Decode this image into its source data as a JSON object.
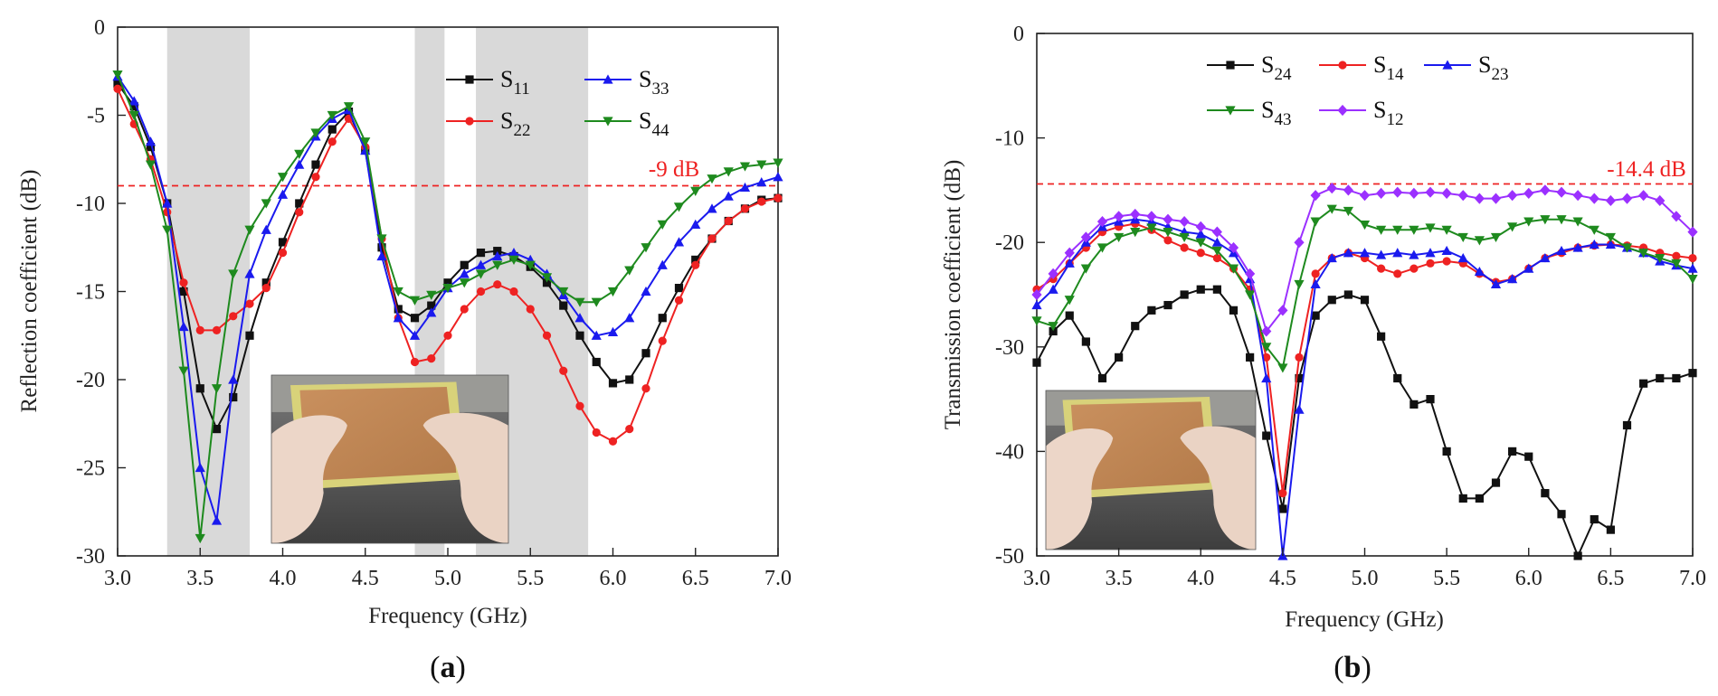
{
  "colors": {
    "black": "#111111",
    "red": "#ee2222",
    "blue": "#1a1aee",
    "green": "#1e8a1e",
    "purple": "#9b30ff",
    "ref_line": "#ee2222",
    "shade": "#d9d9d9"
  },
  "photo": {
    "icon": "photo-icon"
  },
  "chart_data": [
    {
      "type": "line",
      "panel": "a",
      "caption": "a",
      "xlabel": "Frequency (GHz)",
      "ylabel": "Reflection coefficient (dB)",
      "xlim": [
        3.0,
        7.0
      ],
      "ylim": [
        -30,
        0
      ],
      "xticks": [
        "3.0",
        "3.5",
        "4.0",
        "4.5",
        "5.0",
        "5.5",
        "6.0",
        "6.5",
        "7.0"
      ],
      "yticks": [
        "0",
        "-5",
        "-10",
        "-15",
        "-20",
        "-25",
        "-30"
      ],
      "shaded_bands": [
        [
          3.3,
          3.8
        ],
        [
          4.8,
          4.98
        ],
        [
          5.17,
          5.85
        ]
      ],
      "reference": {
        "value": -9,
        "label": "-9 dB"
      },
      "legend_position": "top-right",
      "series": [
        {
          "base": "S",
          "sub": "11",
          "color": "black",
          "marker": "square",
          "x": [
            3.0,
            3.1,
            3.2,
            3.3,
            3.4,
            3.5,
            3.6,
            3.7,
            3.8,
            3.9,
            4.0,
            4.1,
            4.2,
            4.3,
            4.4,
            4.5,
            4.6,
            4.7,
            4.8,
            4.9,
            5.0,
            5.1,
            5.2,
            5.3,
            5.4,
            5.5,
            5.6,
            5.7,
            5.8,
            5.9,
            6.0,
            6.1,
            6.2,
            6.3,
            6.4,
            6.5,
            6.6,
            6.7,
            6.8,
            6.9,
            7.0
          ],
          "y": [
            -3.2,
            -4.5,
            -6.8,
            -10.0,
            -15.0,
            -20.5,
            -22.8,
            -21.0,
            -17.5,
            -14.5,
            -12.2,
            -10.0,
            -7.8,
            -5.8,
            -4.8,
            -7.0,
            -12.5,
            -16.0,
            -16.5,
            -15.8,
            -14.5,
            -13.5,
            -12.8,
            -12.7,
            -13.0,
            -13.6,
            -14.5,
            -15.8,
            -17.5,
            -19.0,
            -20.2,
            -20.0,
            -18.5,
            -16.5,
            -14.8,
            -13.2,
            -12.0,
            -11.0,
            -10.3,
            -9.8,
            -9.7
          ]
        },
        {
          "base": "S",
          "sub": "22",
          "color": "red",
          "marker": "circle",
          "x": [
            3.0,
            3.1,
            3.2,
            3.3,
            3.4,
            3.5,
            3.6,
            3.7,
            3.8,
            3.9,
            4.0,
            4.1,
            4.2,
            4.3,
            4.4,
            4.5,
            4.6,
            4.7,
            4.8,
            4.9,
            5.0,
            5.1,
            5.2,
            5.3,
            5.4,
            5.5,
            5.6,
            5.7,
            5.8,
            5.9,
            6.0,
            6.1,
            6.2,
            6.3,
            6.4,
            6.5,
            6.6,
            6.7,
            6.8,
            6.9,
            7.0
          ],
          "y": [
            -3.5,
            -5.5,
            -7.5,
            -10.5,
            -14.5,
            -17.2,
            -17.2,
            -16.4,
            -15.7,
            -14.8,
            -12.8,
            -10.5,
            -8.5,
            -6.5,
            -5.2,
            -6.8,
            -12.0,
            -16.5,
            -19.0,
            -18.8,
            -17.5,
            -16.0,
            -15.0,
            -14.6,
            -15.0,
            -16.0,
            -17.5,
            -19.5,
            -21.5,
            -23.0,
            -23.5,
            -22.8,
            -20.5,
            -17.8,
            -15.5,
            -13.5,
            -12.0,
            -11.0,
            -10.3,
            -9.9,
            -9.7
          ]
        },
        {
          "base": "S",
          "sub": "33",
          "color": "blue",
          "marker": "triangle-up",
          "x": [
            3.0,
            3.1,
            3.2,
            3.3,
            3.4,
            3.5,
            3.6,
            3.7,
            3.8,
            3.9,
            4.0,
            4.1,
            4.2,
            4.3,
            4.4,
            4.5,
            4.6,
            4.7,
            4.8,
            4.9,
            5.0,
            5.1,
            5.2,
            5.3,
            5.4,
            5.5,
            5.6,
            5.7,
            5.8,
            5.9,
            6.0,
            6.1,
            6.2,
            6.3,
            6.4,
            6.5,
            6.6,
            6.7,
            6.8,
            6.9,
            7.0
          ],
          "y": [
            -2.8,
            -4.2,
            -6.5,
            -10.0,
            -17.0,
            -25.0,
            -28.0,
            -20.0,
            -14.0,
            -11.5,
            -9.5,
            -7.8,
            -6.2,
            -5.2,
            -4.7,
            -7.0,
            -13.0,
            -16.5,
            -17.5,
            -16.2,
            -14.8,
            -14.0,
            -13.5,
            -13.0,
            -12.8,
            -13.2,
            -14.0,
            -15.2,
            -16.5,
            -17.5,
            -17.3,
            -16.5,
            -15.0,
            -13.5,
            -12.2,
            -11.2,
            -10.3,
            -9.6,
            -9.1,
            -8.8,
            -8.5
          ]
        },
        {
          "base": "S",
          "sub": "44",
          "color": "green",
          "marker": "triangle-down",
          "x": [
            3.0,
            3.1,
            3.2,
            3.3,
            3.4,
            3.5,
            3.6,
            3.7,
            3.8,
            3.9,
            4.0,
            4.1,
            4.2,
            4.3,
            4.4,
            4.5,
            4.6,
            4.7,
            4.8,
            4.9,
            5.0,
            5.1,
            5.2,
            5.3,
            5.4,
            5.5,
            5.6,
            5.7,
            5.8,
            5.9,
            6.0,
            6.1,
            6.2,
            6.3,
            6.4,
            6.5,
            6.6,
            6.7,
            6.8,
            6.9,
            7.0
          ],
          "y": [
            -2.7,
            -5.0,
            -7.8,
            -11.5,
            -19.5,
            -29.0,
            -20.5,
            -14.0,
            -11.5,
            -10.0,
            -8.5,
            -7.2,
            -6.0,
            -5.0,
            -4.5,
            -6.5,
            -12.0,
            -15.0,
            -15.5,
            -15.2,
            -14.8,
            -14.5,
            -14.0,
            -13.5,
            -13.2,
            -13.5,
            -14.2,
            -15.0,
            -15.6,
            -15.6,
            -15.0,
            -13.8,
            -12.5,
            -11.2,
            -10.2,
            -9.3,
            -8.6,
            -8.2,
            -7.9,
            -7.8,
            -7.7
          ]
        }
      ]
    },
    {
      "type": "line",
      "panel": "b",
      "caption": "b",
      "xlabel": "Frequency (GHz)",
      "ylabel": "Transmission coefficient (dB)",
      "xlim": [
        3.0,
        7.0
      ],
      "ylim": [
        -50,
        0
      ],
      "xticks": [
        "3.0",
        "3.5",
        "4.0",
        "4.5",
        "5.0",
        "5.5",
        "6.0",
        "6.5",
        "7.0"
      ],
      "yticks": [
        "0",
        "-10",
        "-20",
        "-30",
        "-40",
        "-50"
      ],
      "reference": {
        "value": -14.4,
        "label": "-14.4 dB"
      },
      "legend_position": "top-center",
      "series": [
        {
          "base": "S",
          "sub": "24",
          "color": "black",
          "marker": "square",
          "x": [
            3.0,
            3.1,
            3.2,
            3.3,
            3.4,
            3.5,
            3.6,
            3.7,
            3.8,
            3.9,
            4.0,
            4.1,
            4.2,
            4.3,
            4.4,
            4.5,
            4.6,
            4.7,
            4.8,
            4.9,
            5.0,
            5.1,
            5.2,
            5.3,
            5.4,
            5.5,
            5.6,
            5.7,
            5.8,
            5.9,
            6.0,
            6.1,
            6.2,
            6.3,
            6.4,
            6.5,
            6.6,
            6.7,
            6.8,
            6.9,
            7.0
          ],
          "y": [
            -31.5,
            -28.5,
            -27.0,
            -29.5,
            -33.0,
            -31.0,
            -28.0,
            -26.5,
            -26.0,
            -25.0,
            -24.5,
            -24.5,
            -26.5,
            -31.0,
            -38.5,
            -45.5,
            -33.0,
            -27.0,
            -25.5,
            -25.0,
            -25.5,
            -29.0,
            -33.0,
            -35.5,
            -35.0,
            -40.0,
            -44.5,
            -44.5,
            -43.0,
            -40.0,
            -40.5,
            -44.0,
            -46.0,
            -50.0,
            -46.5,
            -47.5,
            -37.5,
            -33.5,
            -33.0,
            -33.0,
            -32.5
          ]
        },
        {
          "base": "S",
          "sub": "14",
          "color": "red",
          "marker": "circle",
          "x": [
            3.0,
            3.1,
            3.2,
            3.3,
            3.4,
            3.5,
            3.6,
            3.7,
            3.8,
            3.9,
            4.0,
            4.1,
            4.2,
            4.3,
            4.4,
            4.5,
            4.6,
            4.7,
            4.8,
            4.9,
            5.0,
            5.1,
            5.2,
            5.3,
            5.4,
            5.5,
            5.6,
            5.7,
            5.8,
            5.9,
            6.0,
            6.1,
            6.2,
            6.3,
            6.4,
            6.5,
            6.6,
            6.7,
            6.8,
            6.9,
            7.0
          ],
          "y": [
            -24.5,
            -23.5,
            -22.0,
            -20.5,
            -19.0,
            -18.5,
            -18.2,
            -18.8,
            -19.8,
            -20.5,
            -21.0,
            -21.5,
            -22.5,
            -24.5,
            -31.0,
            -44.0,
            -31.0,
            -23.0,
            -21.5,
            -21.0,
            -21.5,
            -22.5,
            -23.0,
            -22.5,
            -22.0,
            -21.8,
            -22.0,
            -23.0,
            -23.8,
            -23.5,
            -22.5,
            -21.5,
            -21.0,
            -20.5,
            -20.3,
            -20.2,
            -20.3,
            -20.5,
            -21.0,
            -21.3,
            -21.5
          ]
        },
        {
          "base": "S",
          "sub": "23",
          "color": "blue",
          "marker": "triangle-up",
          "x": [
            3.0,
            3.1,
            3.2,
            3.3,
            3.4,
            3.5,
            3.6,
            3.7,
            3.8,
            3.9,
            4.0,
            4.1,
            4.2,
            4.3,
            4.4,
            4.5,
            4.6,
            4.7,
            4.8,
            4.9,
            5.0,
            5.1,
            5.2,
            5.3,
            5.4,
            5.5,
            5.6,
            5.7,
            5.8,
            5.9,
            6.0,
            6.1,
            6.2,
            6.3,
            6.4,
            6.5,
            6.6,
            6.7,
            6.8,
            6.9,
            7.0
          ],
          "y": [
            -26.0,
            -24.5,
            -22.0,
            -20.0,
            -18.5,
            -18.0,
            -17.8,
            -18.0,
            -18.5,
            -19.0,
            -19.2,
            -20.0,
            -21.0,
            -23.5,
            -33.0,
            -50.5,
            -36.0,
            -24.0,
            -21.5,
            -21.0,
            -21.0,
            -21.2,
            -21.0,
            -21.2,
            -21.0,
            -20.8,
            -21.5,
            -22.8,
            -24.0,
            -23.5,
            -22.5,
            -21.5,
            -20.8,
            -20.5,
            -20.2,
            -20.2,
            -20.5,
            -21.0,
            -21.8,
            -22.2,
            -22.5
          ]
        },
        {
          "base": "S",
          "sub": "43",
          "color": "green",
          "marker": "triangle-down",
          "x": [
            3.0,
            3.1,
            3.2,
            3.3,
            3.4,
            3.5,
            3.6,
            3.7,
            3.8,
            3.9,
            4.0,
            4.1,
            4.2,
            4.3,
            4.4,
            4.5,
            4.6,
            4.7,
            4.8,
            4.9,
            5.0,
            5.1,
            5.2,
            5.3,
            5.4,
            5.5,
            5.6,
            5.7,
            5.8,
            5.9,
            6.0,
            6.1,
            6.2,
            6.3,
            6.4,
            6.5,
            6.6,
            6.7,
            6.8,
            6.9,
            7.0
          ],
          "y": [
            -27.5,
            -28.0,
            -25.5,
            -22.5,
            -20.5,
            -19.5,
            -19.0,
            -18.6,
            -19.0,
            -19.5,
            -20.0,
            -20.8,
            -22.5,
            -25.0,
            -30.0,
            -32.0,
            -24.0,
            -18.0,
            -16.8,
            -17.0,
            -18.3,
            -18.8,
            -18.8,
            -18.8,
            -18.6,
            -18.8,
            -19.5,
            -19.8,
            -19.5,
            -18.5,
            -18.0,
            -17.8,
            -17.8,
            -18.0,
            -18.8,
            -19.5,
            -20.5,
            -21.0,
            -21.5,
            -22.0,
            -23.5
          ]
        },
        {
          "base": "S",
          "sub": "12",
          "color": "purple",
          "marker": "diamond",
          "x": [
            3.0,
            3.1,
            3.2,
            3.3,
            3.4,
            3.5,
            3.6,
            3.7,
            3.8,
            3.9,
            4.0,
            4.1,
            4.2,
            4.3,
            4.4,
            4.5,
            4.6,
            4.7,
            4.8,
            4.9,
            5.0,
            5.1,
            5.2,
            5.3,
            5.4,
            5.5,
            5.6,
            5.7,
            5.8,
            5.9,
            6.0,
            6.1,
            6.2,
            6.3,
            6.4,
            6.5,
            6.6,
            6.7,
            6.8,
            6.9,
            7.0
          ],
          "y": [
            -25.0,
            -23.0,
            -21.0,
            -19.5,
            -18.0,
            -17.5,
            -17.3,
            -17.5,
            -17.8,
            -18.0,
            -18.5,
            -19.0,
            -20.5,
            -23.0,
            -28.5,
            -26.5,
            -20.0,
            -15.5,
            -14.8,
            -15.0,
            -15.5,
            -15.3,
            -15.2,
            -15.3,
            -15.2,
            -15.3,
            -15.5,
            -15.8,
            -15.8,
            -15.5,
            -15.3,
            -15.0,
            -15.2,
            -15.5,
            -15.8,
            -16.0,
            -15.8,
            -15.5,
            -16.0,
            -17.5,
            -19.0
          ]
        }
      ]
    }
  ]
}
